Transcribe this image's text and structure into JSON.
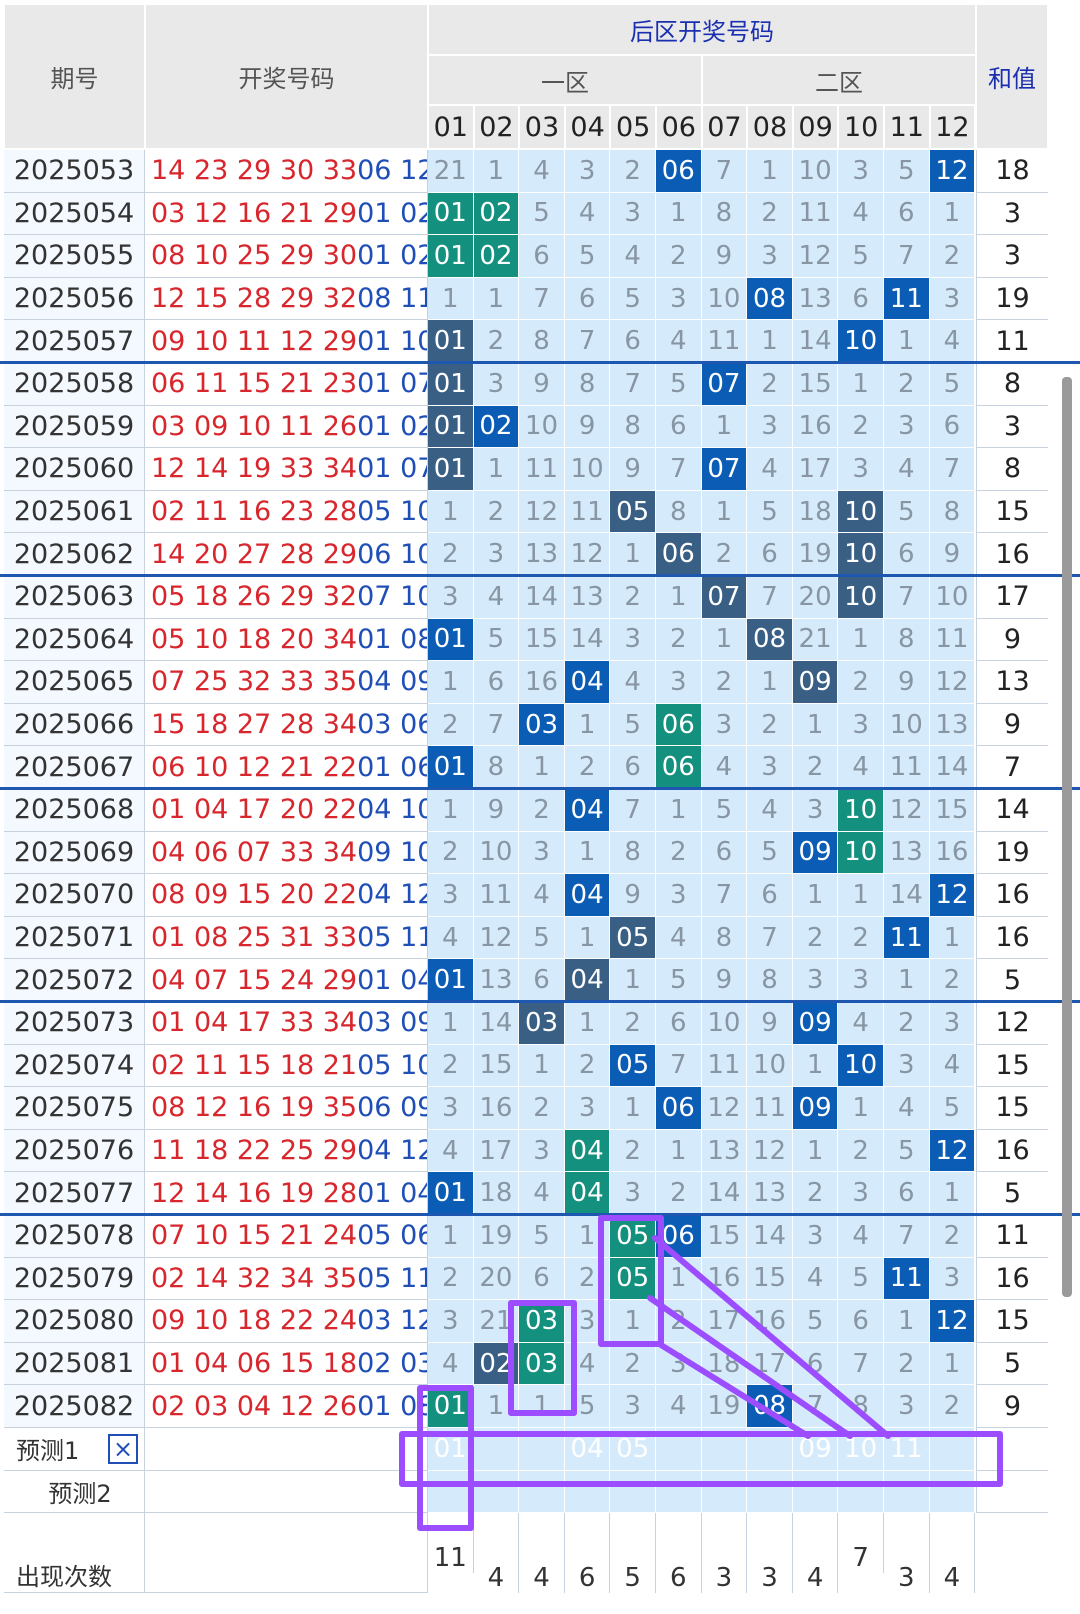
{
  "headers": {
    "period": "期号",
    "draw": "开奖号码",
    "back_zone": "后区开奖号码",
    "zone1": "一区",
    "zone2": "二区",
    "sum": "和值",
    "cols": [
      "01",
      "02",
      "03",
      "04",
      "05",
      "06",
      "07",
      "08",
      "09",
      "10",
      "11",
      "12"
    ]
  },
  "rows": [
    {
      "period": "2025053",
      "front": "14 23 29 30 33",
      "back": "06 12",
      "sum": "18",
      "cells": [
        "21",
        "1",
        "4",
        "3",
        "2",
        "06",
        "7",
        "1",
        "10",
        "3",
        "5",
        "12"
      ],
      "hits": {
        "5": "blue",
        "11": "blue"
      }
    },
    {
      "period": "2025054",
      "front": "03 12 16 21 29",
      "back": "01 02",
      "sum": "3",
      "cells": [
        "01",
        "02",
        "5",
        "4",
        "3",
        "1",
        "8",
        "2",
        "11",
        "4",
        "6",
        "1"
      ],
      "hits": {
        "0": "teal",
        "1": "teal"
      }
    },
    {
      "period": "2025055",
      "front": "08 10 25 29 30",
      "back": "01 02",
      "sum": "3",
      "cells": [
        "01",
        "02",
        "6",
        "5",
        "4",
        "2",
        "9",
        "3",
        "12",
        "5",
        "7",
        "2"
      ],
      "hits": {
        "0": "teal",
        "1": "teal"
      }
    },
    {
      "period": "2025056",
      "front": "12 15 28 29 32",
      "back": "08 11",
      "sum": "19",
      "cells": [
        "1",
        "1",
        "7",
        "6",
        "5",
        "3",
        "10",
        "08",
        "13",
        "6",
        "11",
        "3"
      ],
      "hits": {
        "7": "blue",
        "10": "blue"
      }
    },
    {
      "period": "2025057",
      "front": "09 10 11 12 29",
      "back": "01 10",
      "sum": "11",
      "cells": [
        "01",
        "2",
        "8",
        "7",
        "6",
        "4",
        "11",
        "1",
        "14",
        "10",
        "1",
        "4"
      ],
      "hits": {
        "0": "slate",
        "9": "blue"
      }
    },
    {
      "period": "2025058",
      "front": "06 11 15 21 23",
      "back": "01 07",
      "sum": "8",
      "cells": [
        "01",
        "3",
        "9",
        "8",
        "7",
        "5",
        "07",
        "2",
        "15",
        "1",
        "2",
        "5"
      ],
      "hits": {
        "0": "slate",
        "6": "blue"
      }
    },
    {
      "period": "2025059",
      "front": "03 09 10 11 26",
      "back": "01 02",
      "sum": "3",
      "cells": [
        "01",
        "02",
        "10",
        "9",
        "8",
        "6",
        "1",
        "3",
        "16",
        "2",
        "3",
        "6"
      ],
      "hits": {
        "0": "slate",
        "1": "blue"
      }
    },
    {
      "period": "2025060",
      "front": "12 14 19 33 34",
      "back": "01 07",
      "sum": "8",
      "cells": [
        "01",
        "1",
        "11",
        "10",
        "9",
        "7",
        "07",
        "4",
        "17",
        "3",
        "4",
        "7"
      ],
      "hits": {
        "0": "slate",
        "6": "blue"
      }
    },
    {
      "period": "2025061",
      "front": "02 11 16 23 28",
      "back": "05 10",
      "sum": "15",
      "cells": [
        "1",
        "2",
        "12",
        "11",
        "05",
        "8",
        "1",
        "5",
        "18",
        "10",
        "5",
        "8"
      ],
      "hits": {
        "4": "slate",
        "9": "slate"
      }
    },
    {
      "period": "2025062",
      "front": "14 20 27 28 29",
      "back": "06 10",
      "sum": "16",
      "cells": [
        "2",
        "3",
        "13",
        "12",
        "1",
        "06",
        "2",
        "6",
        "19",
        "10",
        "6",
        "9"
      ],
      "hits": {
        "5": "slate",
        "9": "slate"
      }
    },
    {
      "period": "2025063",
      "front": "05 18 26 29 32",
      "back": "07 10",
      "sum": "17",
      "cells": [
        "3",
        "4",
        "14",
        "13",
        "2",
        "1",
        "07",
        "7",
        "20",
        "10",
        "7",
        "10"
      ],
      "hits": {
        "6": "slate",
        "9": "slate"
      }
    },
    {
      "period": "2025064",
      "front": "05 10 18 20 34",
      "back": "01 08",
      "sum": "9",
      "cells": [
        "01",
        "5",
        "15",
        "14",
        "3",
        "2",
        "1",
        "08",
        "21",
        "1",
        "8",
        "11"
      ],
      "hits": {
        "0": "blue",
        "7": "slate"
      }
    },
    {
      "period": "2025065",
      "front": "07 25 32 33 35",
      "back": "04 09",
      "sum": "13",
      "cells": [
        "1",
        "6",
        "16",
        "04",
        "4",
        "3",
        "2",
        "1",
        "09",
        "2",
        "9",
        "12"
      ],
      "hits": {
        "3": "blue",
        "8": "slate"
      }
    },
    {
      "period": "2025066",
      "front": "15 18 27 28 34",
      "back": "03 06",
      "sum": "9",
      "cells": [
        "2",
        "7",
        "03",
        "1",
        "5",
        "06",
        "3",
        "2",
        "1",
        "3",
        "10",
        "13"
      ],
      "hits": {
        "2": "blue",
        "5": "teal"
      }
    },
    {
      "period": "2025067",
      "front": "06 10 12 21 22",
      "back": "01 06",
      "sum": "7",
      "cells": [
        "01",
        "8",
        "1",
        "2",
        "6",
        "06",
        "4",
        "3",
        "2",
        "4",
        "11",
        "14"
      ],
      "hits": {
        "0": "blue",
        "5": "teal"
      }
    },
    {
      "period": "2025068",
      "front": "01 04 17 20 22",
      "back": "04 10",
      "sum": "14",
      "cells": [
        "1",
        "9",
        "2",
        "04",
        "7",
        "1",
        "5",
        "4",
        "3",
        "10",
        "12",
        "15"
      ],
      "hits": {
        "3": "blue",
        "9": "teal"
      }
    },
    {
      "period": "2025069",
      "front": "04 06 07 33 34",
      "back": "09 10",
      "sum": "19",
      "cells": [
        "2",
        "10",
        "3",
        "1",
        "8",
        "2",
        "6",
        "5",
        "09",
        "10",
        "13",
        "16"
      ],
      "hits": {
        "8": "blue",
        "9": "teal"
      }
    },
    {
      "period": "2025070",
      "front": "08 09 15 20 22",
      "back": "04 12",
      "sum": "16",
      "cells": [
        "3",
        "11",
        "4",
        "04",
        "9",
        "3",
        "7",
        "6",
        "1",
        "1",
        "14",
        "12"
      ],
      "hits": {
        "3": "blue",
        "11": "blue"
      }
    },
    {
      "period": "2025071",
      "front": "01 08 25 31 33",
      "back": "05 11",
      "sum": "16",
      "cells": [
        "4",
        "12",
        "5",
        "1",
        "05",
        "4",
        "8",
        "7",
        "2",
        "2",
        "11",
        "1"
      ],
      "hits": {
        "4": "slate",
        "10": "blue"
      }
    },
    {
      "period": "2025072",
      "front": "04 07 15 24 29",
      "back": "01 04",
      "sum": "5",
      "cells": [
        "01",
        "13",
        "6",
        "04",
        "1",
        "5",
        "9",
        "8",
        "3",
        "3",
        "1",
        "2"
      ],
      "hits": {
        "0": "blue",
        "3": "slate"
      }
    },
    {
      "period": "2025073",
      "front": "01 04 17 33 34",
      "back": "03 09",
      "sum": "12",
      "cells": [
        "1",
        "14",
        "03",
        "1",
        "2",
        "6",
        "10",
        "9",
        "09",
        "4",
        "2",
        "3"
      ],
      "hits": {
        "2": "slate",
        "8": "blue"
      }
    },
    {
      "period": "2025074",
      "front": "02 11 15 18 21",
      "back": "05 10",
      "sum": "15",
      "cells": [
        "2",
        "15",
        "1",
        "2",
        "05",
        "7",
        "11",
        "10",
        "1",
        "10",
        "3",
        "4"
      ],
      "hits": {
        "4": "blue",
        "9": "blue"
      }
    },
    {
      "period": "2025075",
      "front": "08 12 16 19 35",
      "back": "06 09",
      "sum": "15",
      "cells": [
        "3",
        "16",
        "2",
        "3",
        "1",
        "06",
        "12",
        "11",
        "09",
        "1",
        "4",
        "5"
      ],
      "hits": {
        "5": "blue",
        "8": "blue"
      }
    },
    {
      "period": "2025076",
      "front": "11 18 22 25 29",
      "back": "04 12",
      "sum": "16",
      "cells": [
        "4",
        "17",
        "3",
        "04",
        "2",
        "1",
        "13",
        "12",
        "1",
        "2",
        "5",
        "12"
      ],
      "hits": {
        "3": "teal",
        "11": "blue"
      }
    },
    {
      "period": "2025077",
      "front": "12 14 16 19 28",
      "back": "01 04",
      "sum": "5",
      "cells": [
        "01",
        "18",
        "4",
        "04",
        "3",
        "2",
        "14",
        "13",
        "2",
        "3",
        "6",
        "1"
      ],
      "hits": {
        "0": "blue",
        "3": "teal"
      }
    },
    {
      "period": "2025078",
      "front": "07 10 15 21 24",
      "back": "05 06",
      "sum": "11",
      "cells": [
        "1",
        "19",
        "5",
        "1",
        "05",
        "06",
        "15",
        "14",
        "3",
        "4",
        "7",
        "2"
      ],
      "hits": {
        "4": "teal",
        "5": "blue"
      }
    },
    {
      "period": "2025079",
      "front": "02 14 32 34 35",
      "back": "05 11",
      "sum": "16",
      "cells": [
        "2",
        "20",
        "6",
        "2",
        "05",
        "1",
        "16",
        "15",
        "4",
        "5",
        "11",
        "3"
      ],
      "hits": {
        "4": "teal",
        "10": "blue"
      }
    },
    {
      "period": "2025080",
      "front": "09 10 18 22 24",
      "back": "03 12",
      "sum": "15",
      "cells": [
        "3",
        "21",
        "03",
        "3",
        "1",
        "2",
        "17",
        "16",
        "5",
        "6",
        "1",
        "12"
      ],
      "hits": {
        "2": "teal",
        "11": "blue"
      }
    },
    {
      "period": "2025081",
      "front": "01 04 06 15 18",
      "back": "02 03",
      "sum": "5",
      "cells": [
        "4",
        "02",
        "03",
        "4",
        "2",
        "3",
        "18",
        "17",
        "6",
        "7",
        "2",
        "1"
      ],
      "hits": {
        "1": "slate",
        "2": "teal"
      }
    },
    {
      "period": "2025082",
      "front": "02 03 04 12 26",
      "back": "01 08",
      "sum": "9",
      "cells": [
        "01",
        "1",
        "1",
        "5",
        "3",
        "4",
        "19",
        "08",
        "7",
        "8",
        "3",
        "2"
      ],
      "hits": {
        "0": "teal",
        "7": "blue"
      }
    }
  ],
  "prediction": {
    "label1": "预测1",
    "label2": "预测2",
    "close_icon": "×",
    "picks": [
      {
        "col": 0,
        "value": "01",
        "style": "teal"
      },
      {
        "col": 3,
        "value": "04",
        "style": "blue"
      },
      {
        "col": 4,
        "value": "05",
        "style": "blue"
      },
      {
        "col": 8,
        "value": "09",
        "style": "blue"
      },
      {
        "col": 9,
        "value": "10",
        "style": "blue"
      },
      {
        "col": 10,
        "value": "11",
        "style": "blue"
      }
    ]
  },
  "counts": {
    "label": "出现次数",
    "values": [
      "11",
      "4",
      "4",
      "6",
      "5",
      "6",
      "3",
      "3",
      "4",
      "7",
      "3",
      "4"
    ]
  },
  "colors": {
    "blue": "#0a5cb4",
    "teal": "#14907e",
    "slate": "#3a5f85",
    "annotation": "#9b4dff"
  }
}
